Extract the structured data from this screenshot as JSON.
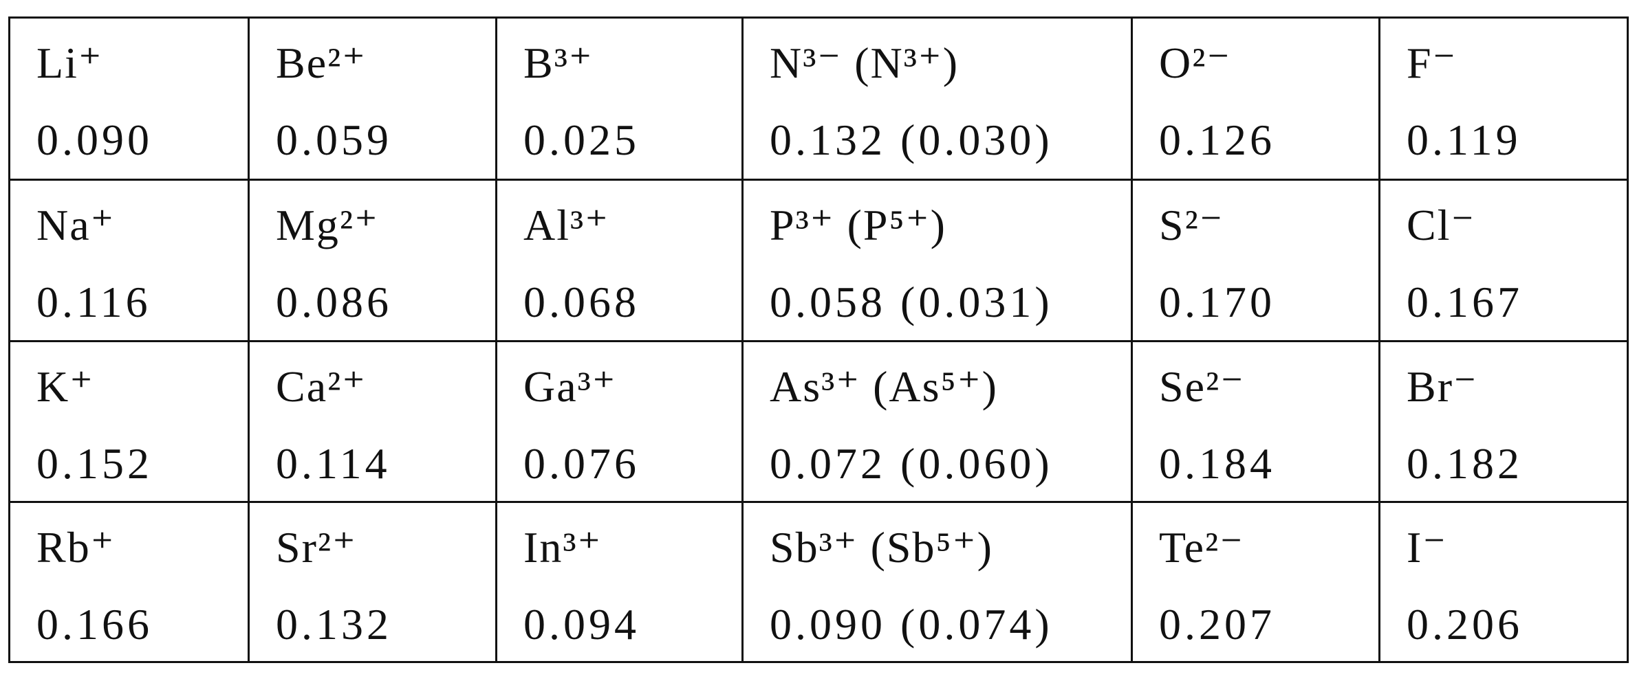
{
  "table": {
    "rows": [
      [
        {
          "ion": "Li⁺",
          "value": "0.090"
        },
        {
          "ion": "Be²⁺",
          "value": "0.059"
        },
        {
          "ion": "B³⁺",
          "value": "0.025"
        },
        {
          "ion": "N³⁻ (N³⁺)",
          "value": "0.132 (0.030)"
        },
        {
          "ion": "O²⁻",
          "value": "0.126"
        },
        {
          "ion": "F⁻",
          "value": "0.119"
        }
      ],
      [
        {
          "ion": "Na⁺",
          "value": "0.116"
        },
        {
          "ion": "Mg²⁺",
          "value": "0.086"
        },
        {
          "ion": "Al³⁺",
          "value": "0.068"
        },
        {
          "ion": "P³⁺ (P⁵⁺)",
          "value": "0.058 (0.031)"
        },
        {
          "ion": "S²⁻",
          "value": "0.170"
        },
        {
          "ion": "Cl⁻",
          "value": "0.167"
        }
      ],
      [
        {
          "ion": "K⁺",
          "value": "0.152"
        },
        {
          "ion": "Ca²⁺",
          "value": "0.114"
        },
        {
          "ion": "Ga³⁺",
          "value": "0.076"
        },
        {
          "ion": "As³⁺ (As⁵⁺)",
          "value": "0.072 (0.060)"
        },
        {
          "ion": "Se²⁻",
          "value": "0.184"
        },
        {
          "ion": "Br⁻",
          "value": "0.182"
        }
      ],
      [
        {
          "ion": "Rb⁺",
          "value": "0.166"
        },
        {
          "ion": "Sr²⁺",
          "value": "0.132"
        },
        {
          "ion": "In³⁺",
          "value": "0.094"
        },
        {
          "ion": "Sb³⁺ (Sb⁵⁺)",
          "value": "0.090 (0.074)"
        },
        {
          "ion": "Te²⁻",
          "value": "0.207"
        },
        {
          "ion": "I⁻",
          "value": "0.206"
        }
      ]
    ]
  }
}
